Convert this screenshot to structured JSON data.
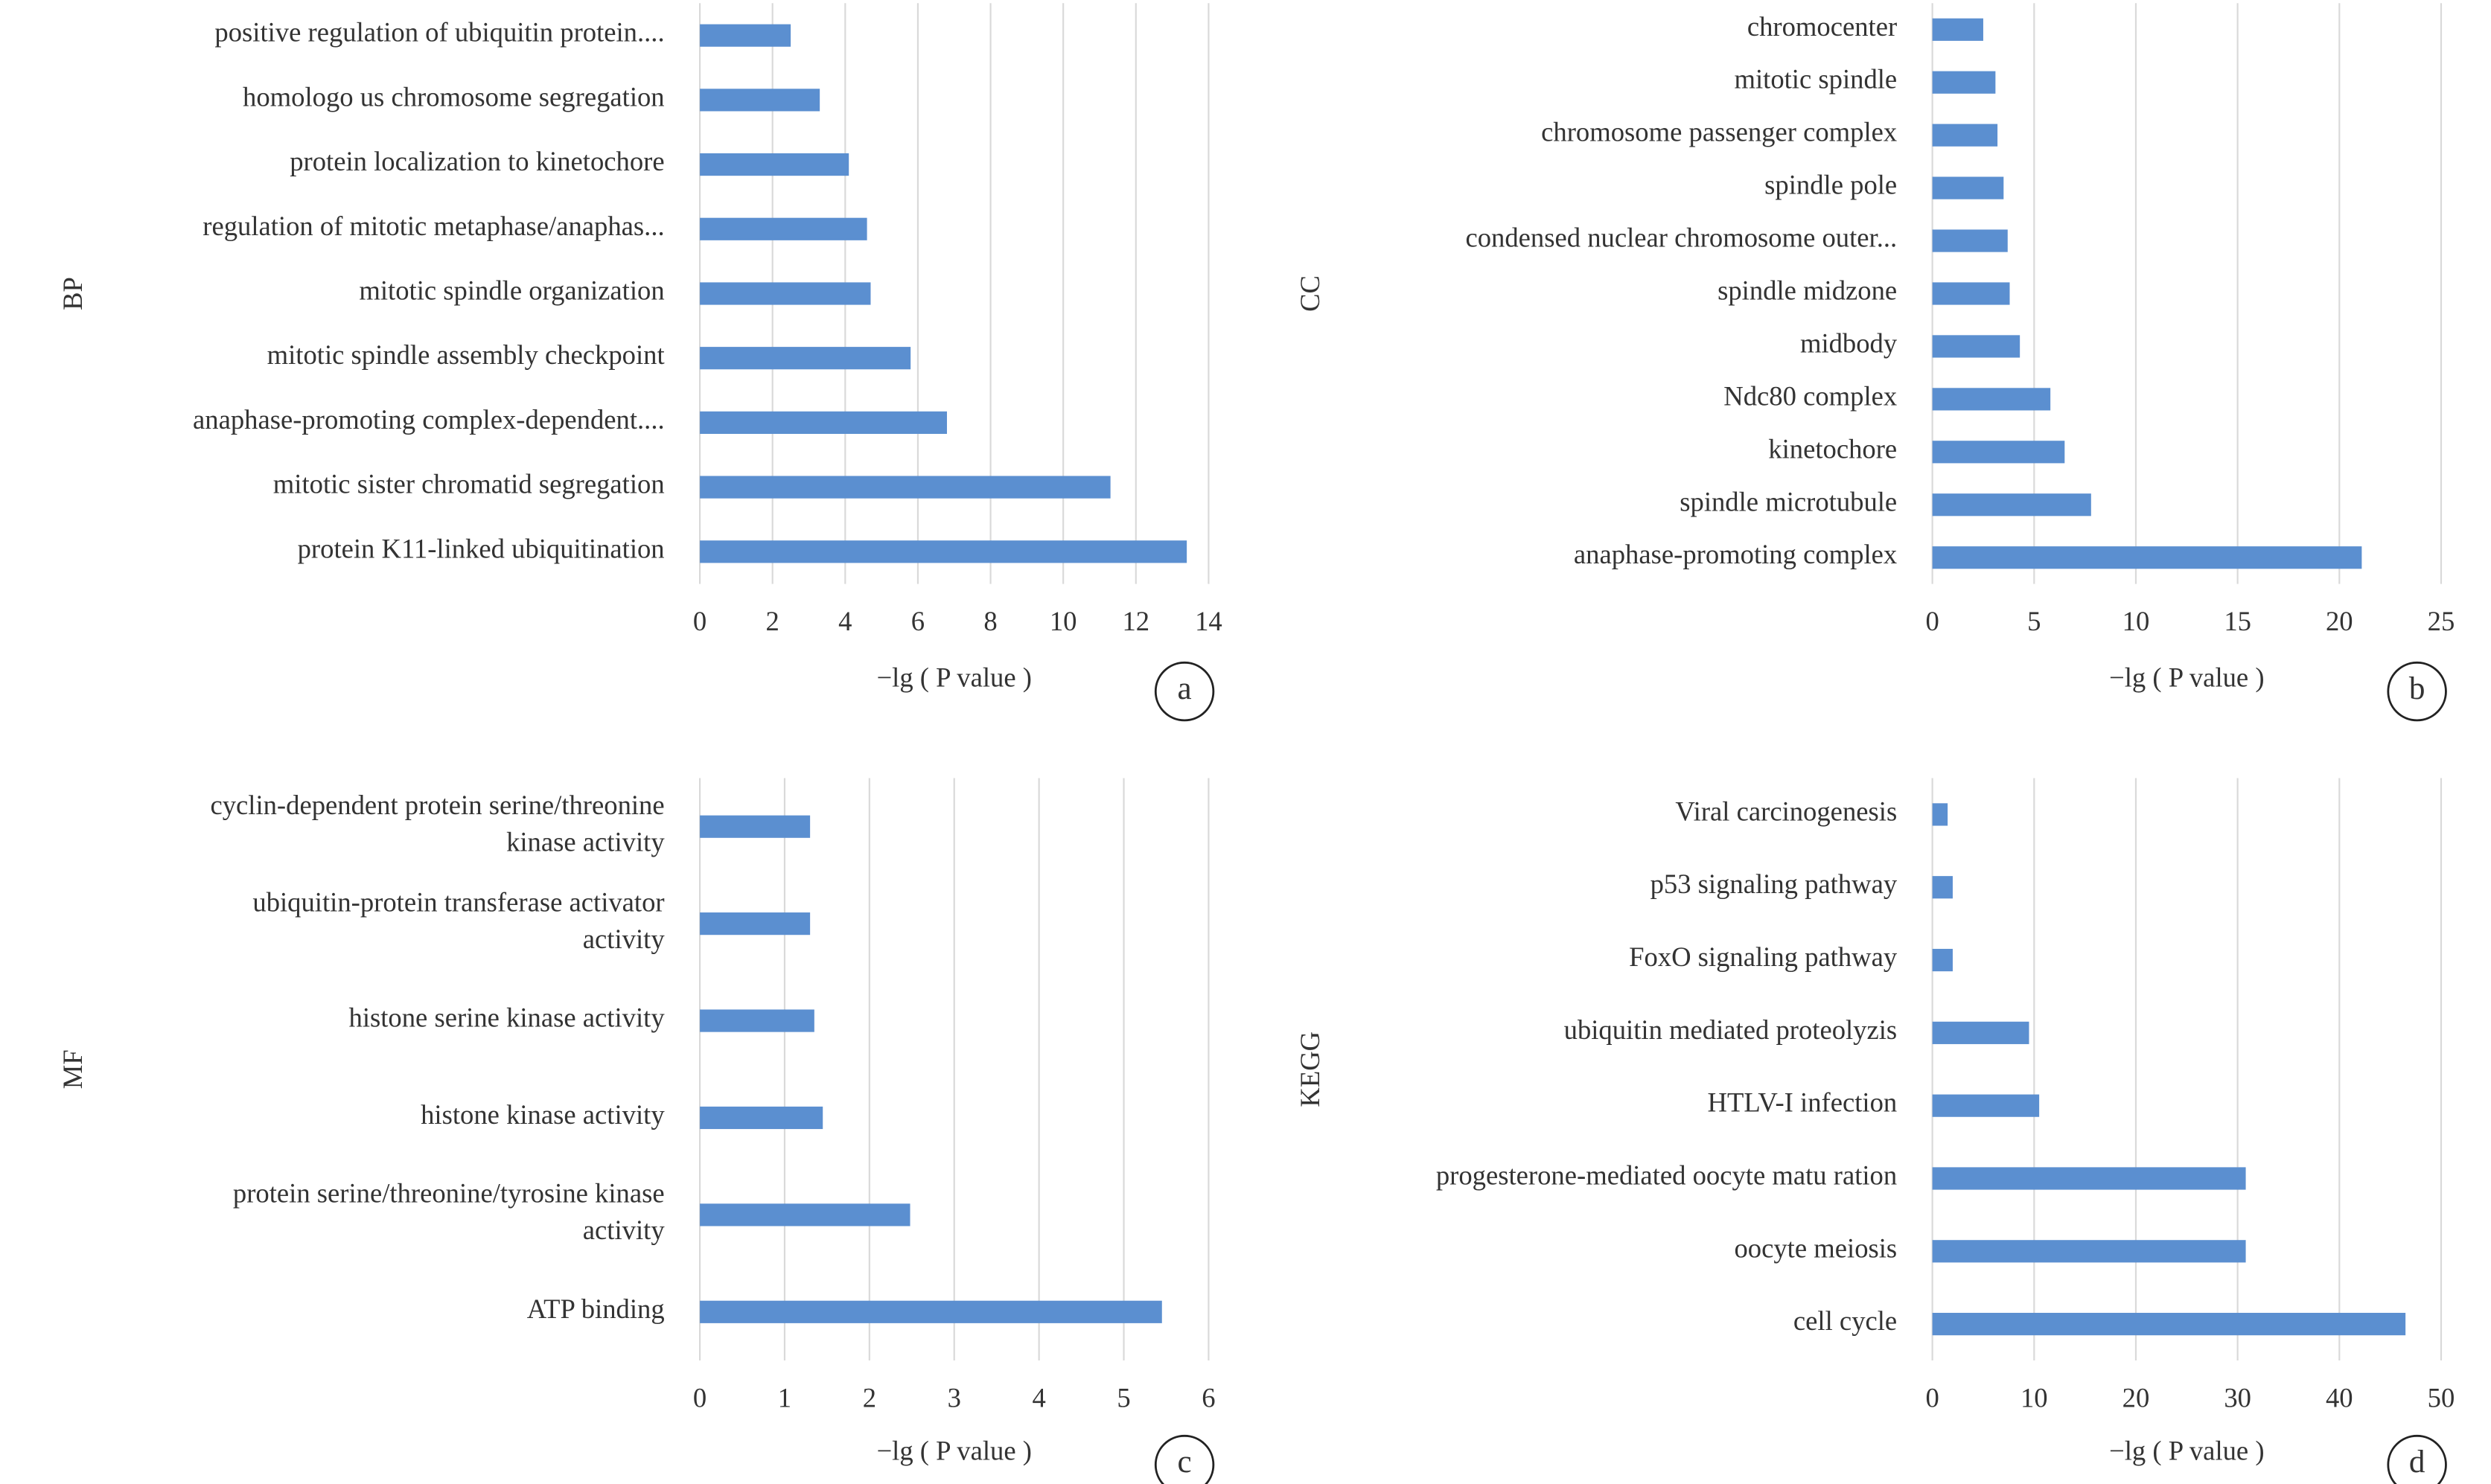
{
  "chart_data": [
    {
      "type": "bar",
      "orientation": "horizontal",
      "panel_label": "a",
      "ylabel": "BP",
      "xlabel": "−lg ( P value )",
      "categories": [
        [
          "positive regulation of ubiquitin protein...."
        ],
        [
          "homologo us chromosome segregation"
        ],
        [
          "protein localization to kinetochore"
        ],
        [
          "regulation of mitotic metaphase/anaphas..."
        ],
        [
          "mitotic spindle organization"
        ],
        [
          "mitotic spindle assembly checkpoint"
        ],
        [
          "anaphase-promoting complex-dependent...."
        ],
        [
          "mitotic sister chromatid segregation"
        ],
        [
          "protein K11-linked ubiquitination"
        ]
      ],
      "values": [
        2.5,
        3.3,
        4.1,
        4.6,
        4.7,
        5.8,
        6.8,
        11.3,
        13.4
      ],
      "color": "#5b8fd0",
      "xlim": [
        0,
        14
      ],
      "xticks": [
        0,
        2,
        4,
        6,
        8,
        10,
        12,
        14
      ],
      "grid": true
    },
    {
      "type": "bar",
      "orientation": "horizontal",
      "panel_label": "b",
      "ylabel": "CC",
      "xlabel": "−lg ( P value )",
      "categories": [
        [
          "chromocenter"
        ],
        [
          "mitotic spindle"
        ],
        [
          "chromosome passenger complex"
        ],
        [
          "spindle pole"
        ],
        [
          "condensed nuclear chromosome outer..."
        ],
        [
          "spindle midzone"
        ],
        [
          "midbody"
        ],
        [
          "Ndc80 complex"
        ],
        [
          "kinetochore"
        ],
        [
          "spindle microtubule"
        ],
        [
          "anaphase-promoting complex"
        ]
      ],
      "values": [
        2.5,
        3.1,
        3.2,
        3.5,
        3.7,
        3.8,
        4.3,
        5.8,
        6.5,
        7.8,
        21.1
      ],
      "color": "#5b8fd0",
      "xlim": [
        0,
        25
      ],
      "xticks": [
        0,
        5,
        10,
        15,
        20,
        25
      ],
      "grid": true
    },
    {
      "type": "bar",
      "orientation": "horizontal",
      "panel_label": "c",
      "ylabel": "MF",
      "xlabel": "−lg ( P value )",
      "categories": [
        [
          "cyclin-dependent protein serine/threonine",
          "kinase activity"
        ],
        [
          "ubiquitin-protein transferase activator",
          "activity"
        ],
        [
          "histone serine kinase activity"
        ],
        [
          "histone kinase activity"
        ],
        [
          "protein serine/threonine/tyrosine kinase",
          "activity"
        ],
        [
          "ATP binding"
        ]
      ],
      "values": [
        1.3,
        1.3,
        1.35,
        1.45,
        2.48,
        5.45
      ],
      "color": "#5b8fd0",
      "xlim": [
        0,
        6
      ],
      "xticks": [
        0,
        1,
        2,
        3,
        4,
        5,
        6
      ],
      "grid": true
    },
    {
      "type": "bar",
      "orientation": "horizontal",
      "panel_label": "d",
      "ylabel": "KEGG",
      "xlabel": "−lg ( P value )",
      "categories": [
        [
          "Viral carcinogenesis"
        ],
        [
          "p53 signaling pathway"
        ],
        [
          "FoxO signaling pathway"
        ],
        [
          "ubiquitin mediated proteolyzis"
        ],
        [
          "HTLV-I infection"
        ],
        [
          "progesterone-mediated oocyte matu ration"
        ],
        [
          "oocyte meiosis"
        ],
        [
          "cell cycle"
        ]
      ],
      "values": [
        1.5,
        2,
        2,
        9.5,
        10.5,
        30.8,
        30.8,
        46.5
      ],
      "color": "#5b8fd0",
      "xlim": [
        0,
        50
      ],
      "xticks": [
        0,
        10,
        20,
        30,
        40,
        50
      ],
      "grid": true
    }
  ]
}
